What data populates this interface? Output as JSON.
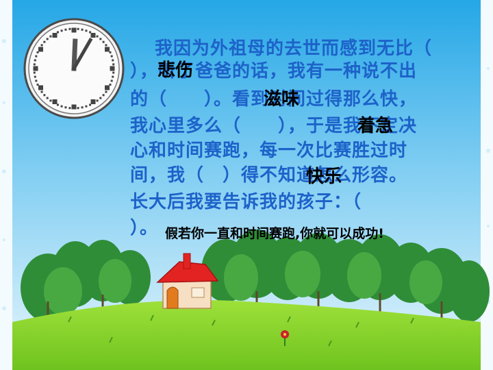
{
  "slide": {
    "passage_lines": [
      "我因为外祖母的去世而感到无比（",
      "），听了爸爸的话，我有一种说不出",
      "的（　　）。看到时间过得那么快，",
      "我心里多么（　　），于是我下定决",
      "心和时间赛跑，每一次比赛胜过时",
      "间，我（　）得不知道怎么形容。",
      "长大后我要告诉我的孩子：（",
      "）。"
    ],
    "answers": [
      "悲伤",
      "滋味",
      "着急",
      "快乐"
    ],
    "closing_sentence": "假若你一直和时间赛跑,你就可以成功!"
  },
  "colors": {
    "text": "#1d62c9",
    "answer": "#000000",
    "sky_top": "#25a7e6",
    "sky_bottom": "#d8f1fb",
    "grass": "#8ed52f",
    "tree": "#2e8f3a",
    "roof": "#e32322",
    "frame": "#4db0e0"
  },
  "clock": {
    "hour": 12,
    "minute": 5
  },
  "icons": [
    "clock-icon",
    "house-icon",
    "tree-icon",
    "flower-icon"
  ]
}
